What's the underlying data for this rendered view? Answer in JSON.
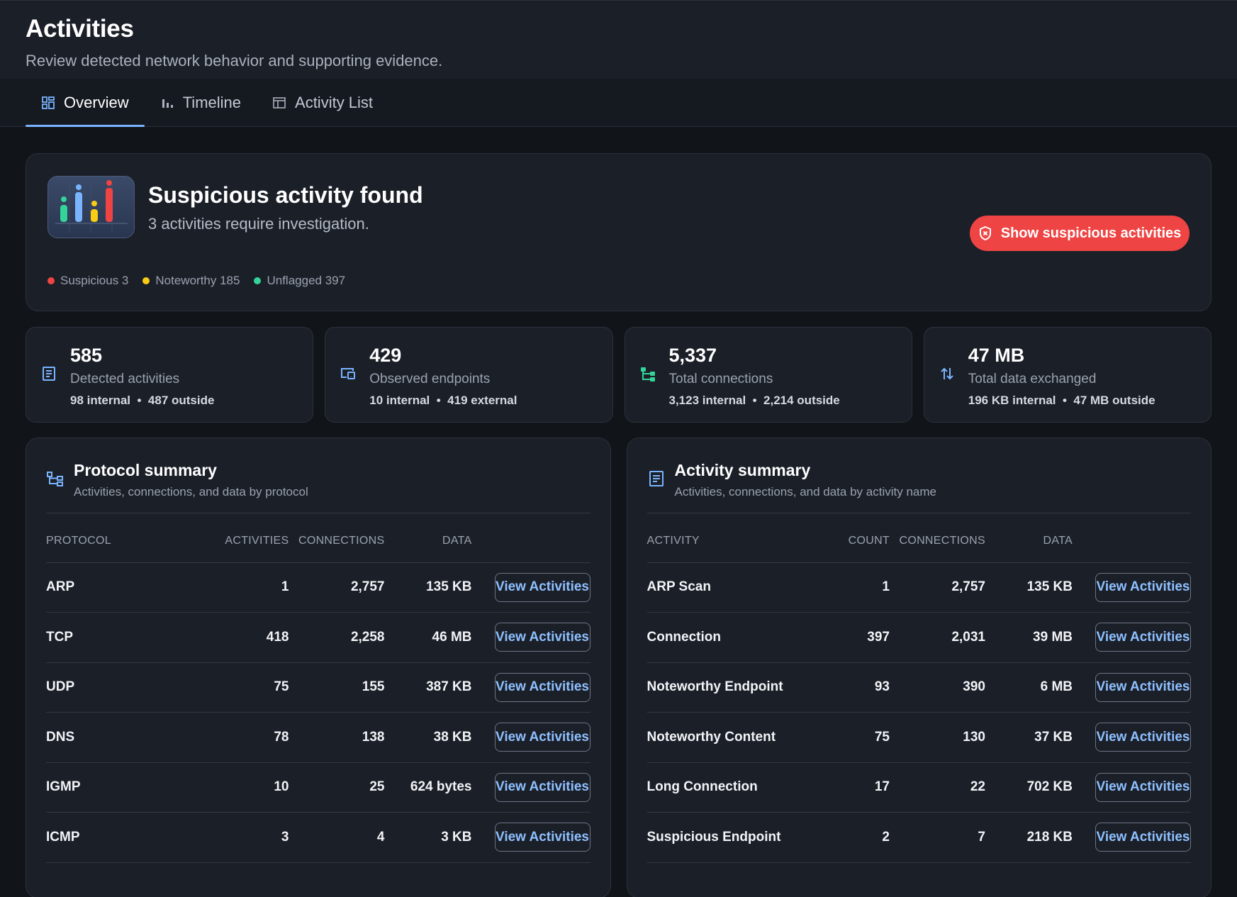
{
  "header": {
    "title": "Activities",
    "subtitle": "Review detected network behavior and supporting evidence."
  },
  "tabs": [
    {
      "label": "Overview",
      "icon": "dashboard-icon",
      "active": true
    },
    {
      "label": "Timeline",
      "icon": "bar-chart-icon",
      "active": false
    },
    {
      "label": "Activity List",
      "icon": "table-icon",
      "active": false
    }
  ],
  "alert": {
    "title": "Suspicious activity found",
    "description": "3 activities require investigation.",
    "button_label": "Show suspicious activities",
    "button_icon": "shield-icon",
    "legend": [
      {
        "label": "Suspicious 3",
        "color": "#ef4444"
      },
      {
        "label": "Noteworthy 185",
        "color": "#facc15"
      },
      {
        "label": "Unflagged 397",
        "color": "#34d399"
      }
    ]
  },
  "stats": [
    {
      "value": "585",
      "label": "Detected activities",
      "detail_a": "98 internal",
      "detail_b": "487 outside",
      "icon": "list-icon",
      "color": "#7ab4ff"
    },
    {
      "value": "429",
      "label": "Observed endpoints",
      "detail_a": "10 internal",
      "detail_b": "419 external",
      "icon": "devices-icon",
      "color": "#7ab4ff"
    },
    {
      "value": "5,337",
      "label": "Total connections",
      "detail_a": "3,123 internal",
      "detail_b": "2,214 outside",
      "icon": "network-icon",
      "color": "#34d399"
    },
    {
      "value": "47 MB",
      "label": "Total data exchanged",
      "detail_a": "196 KB internal",
      "detail_b": "47 MB outside",
      "icon": "swap-arrows-icon",
      "color": "#7ab4ff"
    }
  ],
  "protocol_summary": {
    "title": "Protocol summary",
    "subtitle": "Activities, connections, and data by protocol",
    "columns": [
      "PROTOCOL",
      "ACTIVITIES",
      "CONNECTIONS",
      "DATA"
    ],
    "button_label": "View Activities",
    "rows": [
      [
        "ARP",
        "1",
        "2,757",
        "135 KB"
      ],
      [
        "TCP",
        "418",
        "2,258",
        "46 MB"
      ],
      [
        "UDP",
        "75",
        "155",
        "387 KB"
      ],
      [
        "DNS",
        "78",
        "138",
        "38 KB"
      ],
      [
        "IGMP",
        "10",
        "25",
        "624 bytes"
      ],
      [
        "ICMP",
        "3",
        "4",
        "3 KB"
      ]
    ]
  },
  "activity_summary": {
    "title": "Activity summary",
    "subtitle": "Activities, connections, and data by activity name",
    "columns": [
      "ACTIVITY",
      "COUNT",
      "CONNECTIONS",
      "DATA"
    ],
    "button_label": "View Activities",
    "rows": [
      [
        "ARP Scan",
        "1",
        "2,757",
        "135 KB"
      ],
      [
        "Connection",
        "397",
        "2,031",
        "39 MB"
      ],
      [
        "Noteworthy Endpoint",
        "93",
        "390",
        "6 MB"
      ],
      [
        "Noteworthy Content",
        "75",
        "130",
        "37 KB"
      ],
      [
        "Long Connection",
        "17",
        "22",
        "702 KB"
      ],
      [
        "Suspicious Endpoint",
        "2",
        "7",
        "218 KB"
      ]
    ]
  }
}
